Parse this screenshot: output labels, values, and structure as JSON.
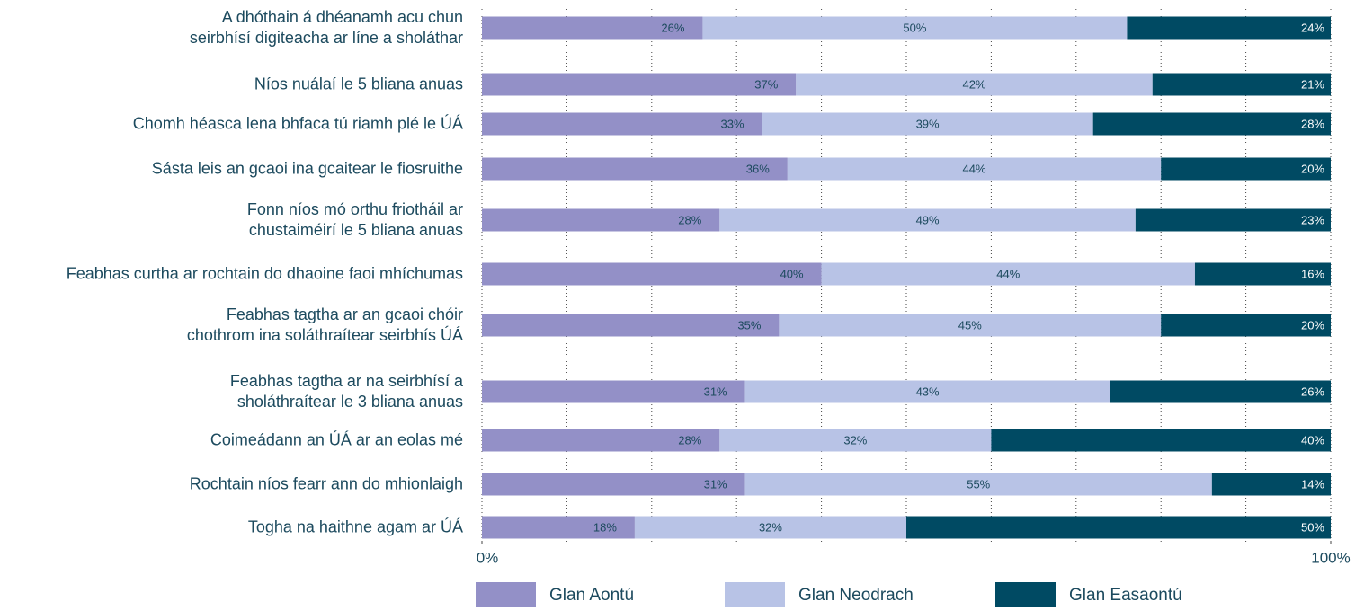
{
  "chart_data": {
    "type": "stacked-bar-horizontal",
    "categories": [
      "A dhóthain á dhéanamh acu chun\nseirbhísí digiteacha ar líne a sholáthar",
      "Níos nuálaí le 5 bliana anuas",
      "Chomh héasca lena bhfaca tú riamh plé le ÚÁ",
      "Sásta leis an gcaoi ina gcaitear le fiosruithe",
      "Fonn níos mó orthu friotháil ar\nchustaiméirí le 5 bliana anuas",
      "Feabhas curtha ar rochtain do dhaoine faoi mhíchumas",
      "Feabhas tagtha ar an gcaoi chóir\nchothrom ina soláthraítear seirbhís ÚÁ",
      "Feabhas tagtha ar na seirbhísí a\nsholáthraítear le 3 bliana anuas",
      "Coimeádann an ÚÁ ar an eolas mé",
      "Rochtain níos fearr ann do mhionlaigh",
      "Togha na haithne agam ar ÚÁ"
    ],
    "series": [
      {
        "name": "Glan Aontú",
        "color": "#9390c7",
        "label_color": "#1c4a5e",
        "values": [
          26,
          37,
          33,
          36,
          28,
          40,
          35,
          31,
          28,
          31,
          18
        ],
        "value_labels": [
          "26%",
          "37%",
          "33%",
          "36%",
          "28%",
          "40%",
          "35%",
          "31%",
          "28%",
          "31%",
          "18%"
        ]
      },
      {
        "name": "Glan Neodrach",
        "color": "#b8c3e6",
        "label_color": "#1c4a5e",
        "values": [
          50,
          42,
          39,
          44,
          49,
          44,
          45,
          43,
          32,
          55,
          32
        ],
        "value_labels": [
          "50%",
          "42%",
          "39%",
          "44%",
          "49%",
          "44%",
          "45%",
          "43%",
          "32%",
          "55%",
          "32%"
        ]
      },
      {
        "name": "Glan Easaontú",
        "color": "#004a63",
        "label_color": "#ffffff",
        "values": [
          24,
          21,
          28,
          20,
          23,
          16,
          20,
          26,
          40,
          14,
          50
        ],
        "value_labels": [
          "24%",
          "21%",
          "28%",
          "20%",
          "23%",
          "16%",
          "20%",
          "26%",
          "40%",
          "14%",
          "50%"
        ]
      }
    ],
    "xlim": [
      0,
      100
    ],
    "xticks": [
      {
        "value": 0,
        "label": "0%"
      },
      {
        "value": 100,
        "label": "100%"
      }
    ],
    "xgrid": [
      0,
      10,
      20,
      30,
      40,
      50,
      60,
      70,
      80,
      90,
      100
    ],
    "legend": "bottom"
  }
}
